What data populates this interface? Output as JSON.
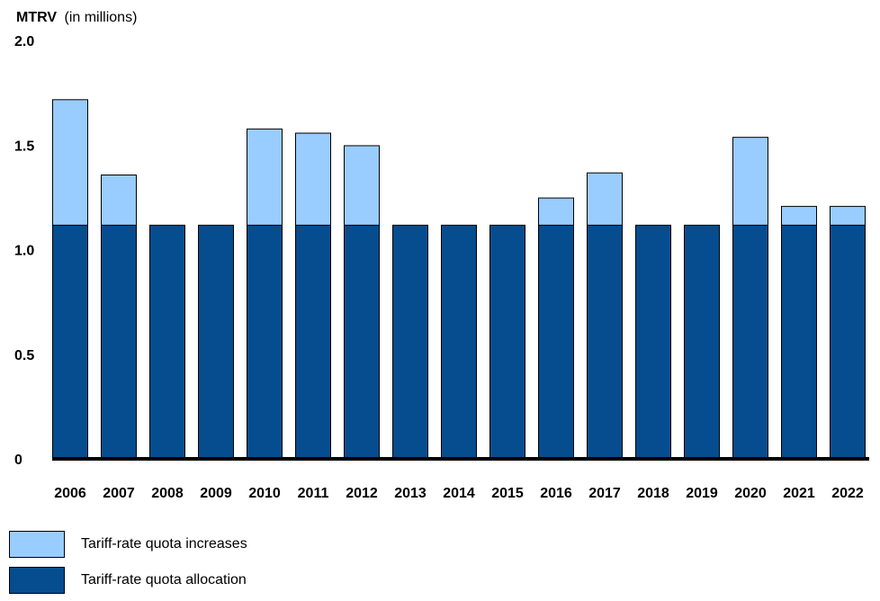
{
  "chart_data": {
    "type": "bar",
    "stacked": true,
    "ylabel_bold": "MTRV",
    "ylabel_rest": "(in millions)",
    "ylim": [
      0,
      2.0
    ],
    "yticks": [
      "0",
      "0.5",
      "1.0",
      "1.5",
      "2.0"
    ],
    "ytick_values": [
      0,
      0.5,
      1.0,
      1.5,
      2.0
    ],
    "grid": false,
    "legend_position": "bottom-left",
    "categories": [
      "2006",
      "2007",
      "2008",
      "2009",
      "2010",
      "2011",
      "2012",
      "2013",
      "2014",
      "2015",
      "2016",
      "2017",
      "2018",
      "2019",
      "2020",
      "2021",
      "2022"
    ],
    "series": [
      {
        "name": "Tariff-rate quota allocation",
        "color": "#064d8f",
        "values": [
          1.117,
          1.117,
          1.117,
          1.117,
          1.117,
          1.117,
          1.117,
          1.117,
          1.117,
          1.117,
          1.117,
          1.117,
          1.117,
          1.117,
          1.117,
          1.117,
          1.117
        ]
      },
      {
        "name": "Tariff-rate quota increases",
        "color": "#99ccff",
        "values": [
          0.6,
          0.24,
          0,
          0,
          0.46,
          0.44,
          0.38,
          0,
          0,
          0,
          0.13,
          0.25,
          0,
          0,
          0.42,
          0.09,
          0.09
        ]
      }
    ]
  },
  "legend": {
    "items": [
      {
        "label": "Tariff-rate quota increases",
        "color": "#99ccff"
      },
      {
        "label": "Tariff-rate quota allocation",
        "color": "#064d8f"
      }
    ]
  }
}
